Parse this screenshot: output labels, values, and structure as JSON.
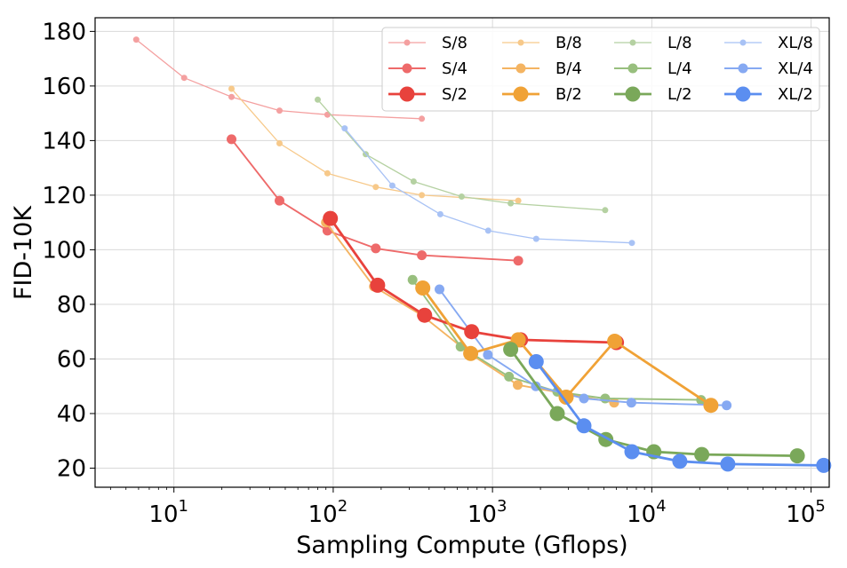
{
  "chart_data": {
    "type": "line",
    "xlabel": "Sampling Compute (Gflops)",
    "ylabel": "FID-10K",
    "x_scale": "log",
    "xlim": [
      3.2,
      130000
    ],
    "ylim": [
      13,
      185
    ],
    "x_ticks": [
      {
        "value": 10,
        "base": "10",
        "exp": "1"
      },
      {
        "value": 100,
        "base": "10",
        "exp": "2"
      },
      {
        "value": 1000,
        "base": "10",
        "exp": "3"
      },
      {
        "value": 10000,
        "base": "10",
        "exp": "4"
      },
      {
        "value": 100000,
        "base": "10",
        "exp": "5"
      }
    ],
    "y_ticks": [
      "20",
      "40",
      "60",
      "80",
      "100",
      "120",
      "140",
      "160",
      "180"
    ],
    "grid": true,
    "legend_position": "top-right",
    "legend_columns": 4,
    "series": [
      {
        "name": "S/8",
        "color": "#f4a0a0",
        "size": 1,
        "points": [
          [
            5.8,
            177
          ],
          [
            11.6,
            163
          ],
          [
            23,
            156
          ],
          [
            46,
            151
          ],
          [
            92,
            149.5
          ],
          [
            360,
            148
          ]
        ]
      },
      {
        "name": "S/4",
        "color": "#ee6a6a",
        "size": 2,
        "points": [
          [
            23,
            140.5
          ],
          [
            46,
            118
          ],
          [
            92,
            107
          ],
          [
            185,
            100.5
          ],
          [
            360,
            98
          ],
          [
            1450,
            96
          ]
        ]
      },
      {
        "name": "S/2",
        "color": "#e8423c",
        "size": 3,
        "points": [
          [
            96,
            111.5
          ],
          [
            190,
            87
          ],
          [
            375,
            76
          ],
          [
            740,
            70
          ],
          [
            1500,
            67
          ],
          [
            6000,
            66
          ]
        ]
      },
      {
        "name": "B/8",
        "color": "#f7c98a",
        "size": 1,
        "points": [
          [
            23,
            159
          ],
          [
            46,
            139
          ],
          [
            92,
            128
          ],
          [
            185,
            123
          ],
          [
            360,
            120
          ],
          [
            1450,
            118
          ]
        ]
      },
      {
        "name": "B/4",
        "color": "#f4b462",
        "size": 2,
        "points": [
          [
            90,
            110
          ],
          [
            180,
            86.5
          ],
          [
            360,
            76
          ],
          [
            720,
            62
          ],
          [
            1440,
            50.5
          ],
          [
            5800,
            44
          ]
        ]
      },
      {
        "name": "B/2",
        "color": "#f0a236",
        "size": 3,
        "points": [
          [
            365,
            86
          ],
          [
            730,
            62
          ],
          [
            1450,
            67
          ],
          [
            2900,
            46
          ],
          [
            5850,
            66.5
          ],
          [
            23500,
            43
          ]
        ]
      },
      {
        "name": "L/8",
        "color": "#b5d1a2",
        "size": 1,
        "points": [
          [
            80,
            155
          ],
          [
            160,
            135
          ],
          [
            320,
            125
          ],
          [
            640,
            119.5
          ],
          [
            1300,
            117
          ],
          [
            5100,
            114.5
          ]
        ]
      },
      {
        "name": "L/4",
        "color": "#98bf7e",
        "size": 2,
        "points": [
          [
            315,
            89
          ],
          [
            630,
            64.5
          ],
          [
            1270,
            53.5
          ],
          [
            2550,
            48
          ],
          [
            5100,
            45.5
          ],
          [
            20400,
            45
          ]
        ]
      },
      {
        "name": "L/2",
        "color": "#7aa85a",
        "size": 3,
        "points": [
          [
            1300,
            63.5
          ],
          [
            2550,
            40
          ],
          [
            5150,
            30.5
          ],
          [
            10300,
            26
          ],
          [
            20600,
            25
          ],
          [
            82000,
            24.5
          ]
        ]
      },
      {
        "name": "XL/8",
        "color": "#a8c2f5",
        "size": 1,
        "points": [
          [
            118,
            144.5
          ],
          [
            235,
            123.5
          ],
          [
            470,
            113
          ],
          [
            940,
            107
          ],
          [
            1880,
            104
          ],
          [
            7500,
            102.5
          ]
        ]
      },
      {
        "name": "XL/4",
        "color": "#86a9f2",
        "size": 2,
        "points": [
          [
            465,
            85.5
          ],
          [
            935,
            61.5
          ],
          [
            1870,
            50
          ],
          [
            3750,
            45.5
          ],
          [
            7450,
            44
          ],
          [
            29500,
            43
          ]
        ]
      },
      {
        "name": "XL/2",
        "color": "#5b8ef0",
        "size": 3,
        "points": [
          [
            1880,
            59
          ],
          [
            3750,
            35.5
          ],
          [
            7500,
            26
          ],
          [
            15000,
            22.5
          ],
          [
            30000,
            21.5
          ],
          [
            120000,
            21
          ]
        ]
      }
    ]
  }
}
